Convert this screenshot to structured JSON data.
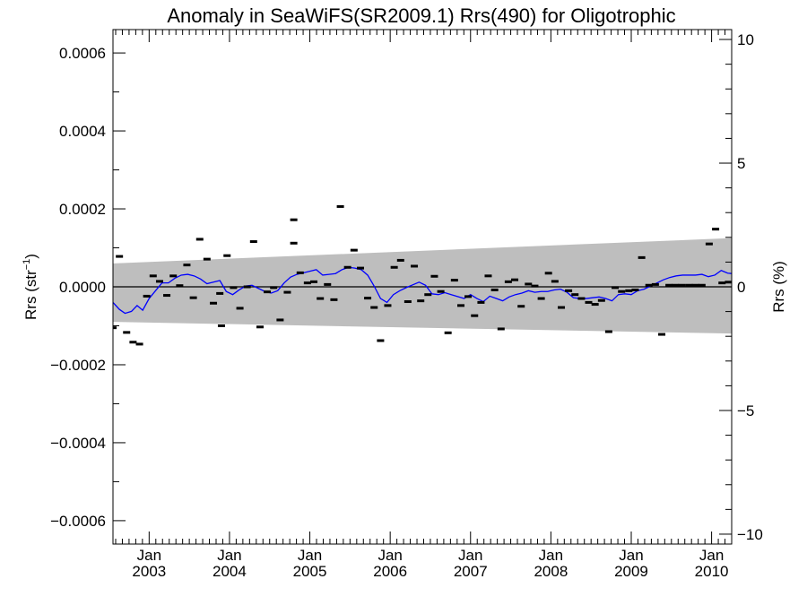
{
  "chart_data": {
    "type": "scatter",
    "title": "Anomaly in SeaWiFS(SR2009.1) Rrs(490) for Oligotrophic",
    "ylabel_left": {
      "base": "Rrs (str",
      "sup": "−1",
      "tail": ")"
    },
    "ylabel_right": "Rrs (%)",
    "x_range": [
      2002.55,
      2010.25
    ],
    "y_range_left": [
      -0.00066,
      0.00066
    ],
    "y_range_right": [
      -10.4,
      10.4
    ],
    "x_ticks": [
      {
        "x": 2003.0,
        "month": "Jan",
        "year": "2003"
      },
      {
        "x": 2004.0,
        "month": "Jan",
        "year": "2004"
      },
      {
        "x": 2005.0,
        "month": "Jan",
        "year": "2005"
      },
      {
        "x": 2006.0,
        "month": "Jan",
        "year": "2006"
      },
      {
        "x": 2007.0,
        "month": "Jan",
        "year": "2007"
      },
      {
        "x": 2008.0,
        "month": "Jan",
        "year": "2008"
      },
      {
        "x": 2009.0,
        "month": "Jan",
        "year": "2009"
      },
      {
        "x": 2010.0,
        "month": "Jan",
        "year": "2010"
      }
    ],
    "y_ticks_left": [
      {
        "v": 0.0006,
        "label": "0.0006"
      },
      {
        "v": 0.0004,
        "label": "0.0004"
      },
      {
        "v": 0.0002,
        "label": "0.0002"
      },
      {
        "v": 0.0,
        "label": "0.0000"
      },
      {
        "v": -0.0002,
        "label": "−0.0002"
      },
      {
        "v": -0.0004,
        "label": "−0.0004"
      },
      {
        "v": -0.0006,
        "label": "−0.0006"
      }
    ],
    "y_ticks_right": [
      {
        "v": 10,
        "label": "10"
      },
      {
        "v": 5,
        "label": "5"
      },
      {
        "v": 0,
        "label": "0"
      },
      {
        "v": -5,
        "label": "−5"
      },
      {
        "v": -10,
        "label": "−10"
      }
    ],
    "band": {
      "upper": [
        [
          2002.55,
          6e-05
        ],
        [
          2010.25,
          0.000125
        ]
      ],
      "lower": [
        [
          2002.55,
          -9e-05
        ],
        [
          2010.25,
          -0.00012
        ]
      ],
      "color": "#bebebe"
    },
    "zero_line": 0,
    "points": [
      [
        2002.55,
        -0.000105
      ],
      [
        2002.63,
        7.8e-05
      ],
      [
        2002.72,
        -0.000117
      ],
      [
        2002.8,
        -0.000142
      ],
      [
        2002.88,
        -0.000147
      ],
      [
        2002.97,
        -2.4e-05
      ],
      [
        2003.05,
        2.8e-05
      ],
      [
        2003.13,
        1.4e-05
      ],
      [
        2003.22,
        -2.2e-05
      ],
      [
        2003.3,
        2.8e-05
      ],
      [
        2003.38,
        3e-06
      ],
      [
        2003.47,
        5.6e-05
      ],
      [
        2003.55,
        -2.8e-05
      ],
      [
        2003.63,
        0.000122
      ],
      [
        2003.72,
        7.1e-05
      ],
      [
        2003.8,
        -4.2e-05
      ],
      [
        2003.88,
        -1.7e-05
      ],
      [
        2003.9,
        -0.0001
      ],
      [
        2003.97,
        8e-05
      ],
      [
        2004.05,
        -2e-06
      ],
      [
        2004.13,
        -5.5e-05
      ],
      [
        2004.22,
        0.0
      ],
      [
        2004.3,
        0.000116
      ],
      [
        2004.38,
        -0.000103
      ],
      [
        2004.47,
        -1.3e-05
      ],
      [
        2004.55,
        -2e-06
      ],
      [
        2004.63,
        -8.5e-05
      ],
      [
        2004.72,
        -1.4e-05
      ],
      [
        2004.8,
        0.000112
      ],
      [
        2004.8,
        0.000172
      ],
      [
        2004.88,
        3.6e-05
      ],
      [
        2004.97,
        1e-05
      ],
      [
        2005.05,
        1.3e-05
      ],
      [
        2005.13,
        -3e-05
      ],
      [
        2005.22,
        6e-06
      ],
      [
        2005.3,
        -3.3e-05
      ],
      [
        2005.38,
        0.000206
      ],
      [
        2005.47,
        5e-05
      ],
      [
        2005.55,
        9.4e-05
      ],
      [
        2005.63,
        4.8e-05
      ],
      [
        2005.72,
        -2.9e-05
      ],
      [
        2005.8,
        -5.3e-05
      ],
      [
        2005.88,
        -0.000138
      ],
      [
        2005.97,
        -4.8e-05
      ],
      [
        2006.05,
        5e-05
      ],
      [
        2006.13,
        6.8e-05
      ],
      [
        2006.22,
        -3.8e-05
      ],
      [
        2006.3,
        5.3e-05
      ],
      [
        2006.38,
        -3.6e-05
      ],
      [
        2006.47,
        -2e-05
      ],
      [
        2006.55,
        2.7e-05
      ],
      [
        2006.63,
        -1.2e-05
      ],
      [
        2006.72,
        -0.000118
      ],
      [
        2006.8,
        1.7e-05
      ],
      [
        2006.88,
        -4.8e-05
      ],
      [
        2006.97,
        -2.5e-05
      ],
      [
        2007.05,
        -7.4e-05
      ],
      [
        2007.13,
        -4e-05
      ],
      [
        2007.22,
        2.8e-05
      ],
      [
        2007.3,
        -8e-06
      ],
      [
        2007.38,
        -0.000108
      ],
      [
        2007.47,
        1.3e-05
      ],
      [
        2007.55,
        1.8e-05
      ],
      [
        2007.63,
        -5e-05
      ],
      [
        2007.72,
        7e-06
      ],
      [
        2007.8,
        2e-06
      ],
      [
        2007.88,
        -3e-05
      ],
      [
        2007.97,
        3.5e-05
      ],
      [
        2008.05,
        1.4e-05
      ],
      [
        2008.13,
        -5.3e-05
      ],
      [
        2008.22,
        -1e-05
      ],
      [
        2008.3,
        -2e-05
      ],
      [
        2008.38,
        -3e-05
      ],
      [
        2008.47,
        -4e-05
      ],
      [
        2008.55,
        -4.5e-05
      ],
      [
        2008.63,
        -3.5e-05
      ],
      [
        2008.72,
        -0.000115
      ],
      [
        2008.8,
        -2e-06
      ],
      [
        2008.88,
        -1.2e-05
      ],
      [
        2008.97,
        -1e-05
      ],
      [
        2009.05,
        -8e-06
      ],
      [
        2009.13,
        7.5e-05
      ],
      [
        2009.22,
        4e-06
      ],
      [
        2009.3,
        6e-06
      ],
      [
        2009.38,
        -0.000122
      ],
      [
        2009.47,
        4e-06
      ],
      [
        2009.55,
        4e-06
      ],
      [
        2009.63,
        4e-06
      ],
      [
        2009.72,
        4e-06
      ],
      [
        2009.8,
        4e-06
      ],
      [
        2009.88,
        4e-06
      ],
      [
        2009.97,
        0.00011
      ],
      [
        2010.05,
        0.000148
      ],
      [
        2010.13,
        1e-05
      ],
      [
        2010.21,
        1.2e-05
      ]
    ],
    "trend": [
      [
        2002.55,
        -4e-05
      ],
      [
        2002.63,
        -5.8e-05
      ],
      [
        2002.7,
        -6.8e-05
      ],
      [
        2002.78,
        -6.3e-05
      ],
      [
        2002.85,
        -4.8e-05
      ],
      [
        2002.92,
        -6e-05
      ],
      [
        2003.0,
        -3e-05
      ],
      [
        2003.08,
        -1e-05
      ],
      [
        2003.16,
        1e-05
      ],
      [
        2003.24,
        1e-05
      ],
      [
        2003.32,
        2.2e-05
      ],
      [
        2003.4,
        3e-05
      ],
      [
        2003.48,
        3.2e-05
      ],
      [
        2003.56,
        2.8e-05
      ],
      [
        2003.64,
        2e-05
      ],
      [
        2003.72,
        8e-06
      ],
      [
        2003.8,
        1.2e-05
      ],
      [
        2003.88,
        1.6e-05
      ],
      [
        2003.96,
        -1.2e-05
      ],
      [
        2004.04,
        -2e-05
      ],
      [
        2004.12,
        -8e-06
      ],
      [
        2004.2,
        2e-06
      ],
      [
        2004.28,
        4e-06
      ],
      [
        2004.36,
        -4e-06
      ],
      [
        2004.44,
        -1.2e-05
      ],
      [
        2004.52,
        -1.6e-05
      ],
      [
        2004.6,
        -1e-05
      ],
      [
        2004.68,
        1e-05
      ],
      [
        2004.76,
        2.5e-05
      ],
      [
        2004.84,
        3.2e-05
      ],
      [
        2004.92,
        3.6e-05
      ],
      [
        2005.0,
        4e-05
      ],
      [
        2005.08,
        4.4e-05
      ],
      [
        2005.16,
        3e-05
      ],
      [
        2005.24,
        3.2e-05
      ],
      [
        2005.32,
        3.4e-05
      ],
      [
        2005.4,
        4.4e-05
      ],
      [
        2005.48,
        5e-05
      ],
      [
        2005.56,
        4.8e-05
      ],
      [
        2005.64,
        4.4e-05
      ],
      [
        2005.72,
        3e-05
      ],
      [
        2005.8,
        2e-06
      ],
      [
        2005.88,
        -3e-05
      ],
      [
        2005.96,
        -4e-05
      ],
      [
        2006.04,
        -2e-05
      ],
      [
        2006.12,
        -1e-05
      ],
      [
        2006.2,
        -2e-06
      ],
      [
        2006.28,
        5e-06
      ],
      [
        2006.36,
        1.2e-05
      ],
      [
        2006.44,
        4e-06
      ],
      [
        2006.52,
        -1.8e-05
      ],
      [
        2006.6,
        -2e-05
      ],
      [
        2006.68,
        -1.5e-05
      ],
      [
        2006.76,
        -2e-05
      ],
      [
        2006.84,
        -2.5e-05
      ],
      [
        2006.92,
        -3e-05
      ],
      [
        2007.0,
        -2e-05
      ],
      [
        2007.08,
        -3e-05
      ],
      [
        2007.16,
        -3.8e-05
      ],
      [
        2007.24,
        -2.4e-05
      ],
      [
        2007.32,
        -3e-05
      ],
      [
        2007.4,
        -3.6e-05
      ],
      [
        2007.48,
        -2.6e-05
      ],
      [
        2007.56,
        -2e-05
      ],
      [
        2007.64,
        -1.6e-05
      ],
      [
        2007.72,
        -1e-05
      ],
      [
        2007.8,
        -1.4e-05
      ],
      [
        2007.88,
        -1.2e-05
      ],
      [
        2007.96,
        -1.2e-05
      ],
      [
        2008.04,
        -8e-06
      ],
      [
        2008.12,
        -6e-06
      ],
      [
        2008.2,
        -1.4e-05
      ],
      [
        2008.28,
        -2.8e-05
      ],
      [
        2008.36,
        -3e-05
      ],
      [
        2008.44,
        -3e-05
      ],
      [
        2008.52,
        -2.8e-05
      ],
      [
        2008.6,
        -2.6e-05
      ],
      [
        2008.68,
        -3e-05
      ],
      [
        2008.76,
        -3.6e-05
      ],
      [
        2008.84,
        -2e-05
      ],
      [
        2008.92,
        -1.8e-05
      ],
      [
        2009.0,
        -2e-05
      ],
      [
        2009.08,
        -1e-05
      ],
      [
        2009.16,
        -6e-06
      ],
      [
        2009.24,
        2e-06
      ],
      [
        2009.32,
        1e-05
      ],
      [
        2009.4,
        1.8e-05
      ],
      [
        2009.48,
        2.4e-05
      ],
      [
        2009.56,
        2.8e-05
      ],
      [
        2009.64,
        3e-05
      ],
      [
        2009.72,
        3e-05
      ],
      [
        2009.8,
        3e-05
      ],
      [
        2009.88,
        3.2e-05
      ],
      [
        2009.96,
        2.6e-05
      ],
      [
        2010.04,
        3e-05
      ],
      [
        2010.12,
        4.2e-05
      ],
      [
        2010.2,
        3.5e-05
      ],
      [
        2010.25,
        3.4e-05
      ]
    ],
    "colors": {
      "trend": "#0000ff",
      "points": "#000000",
      "band": "#bebebe",
      "axes": "#000000"
    }
  }
}
